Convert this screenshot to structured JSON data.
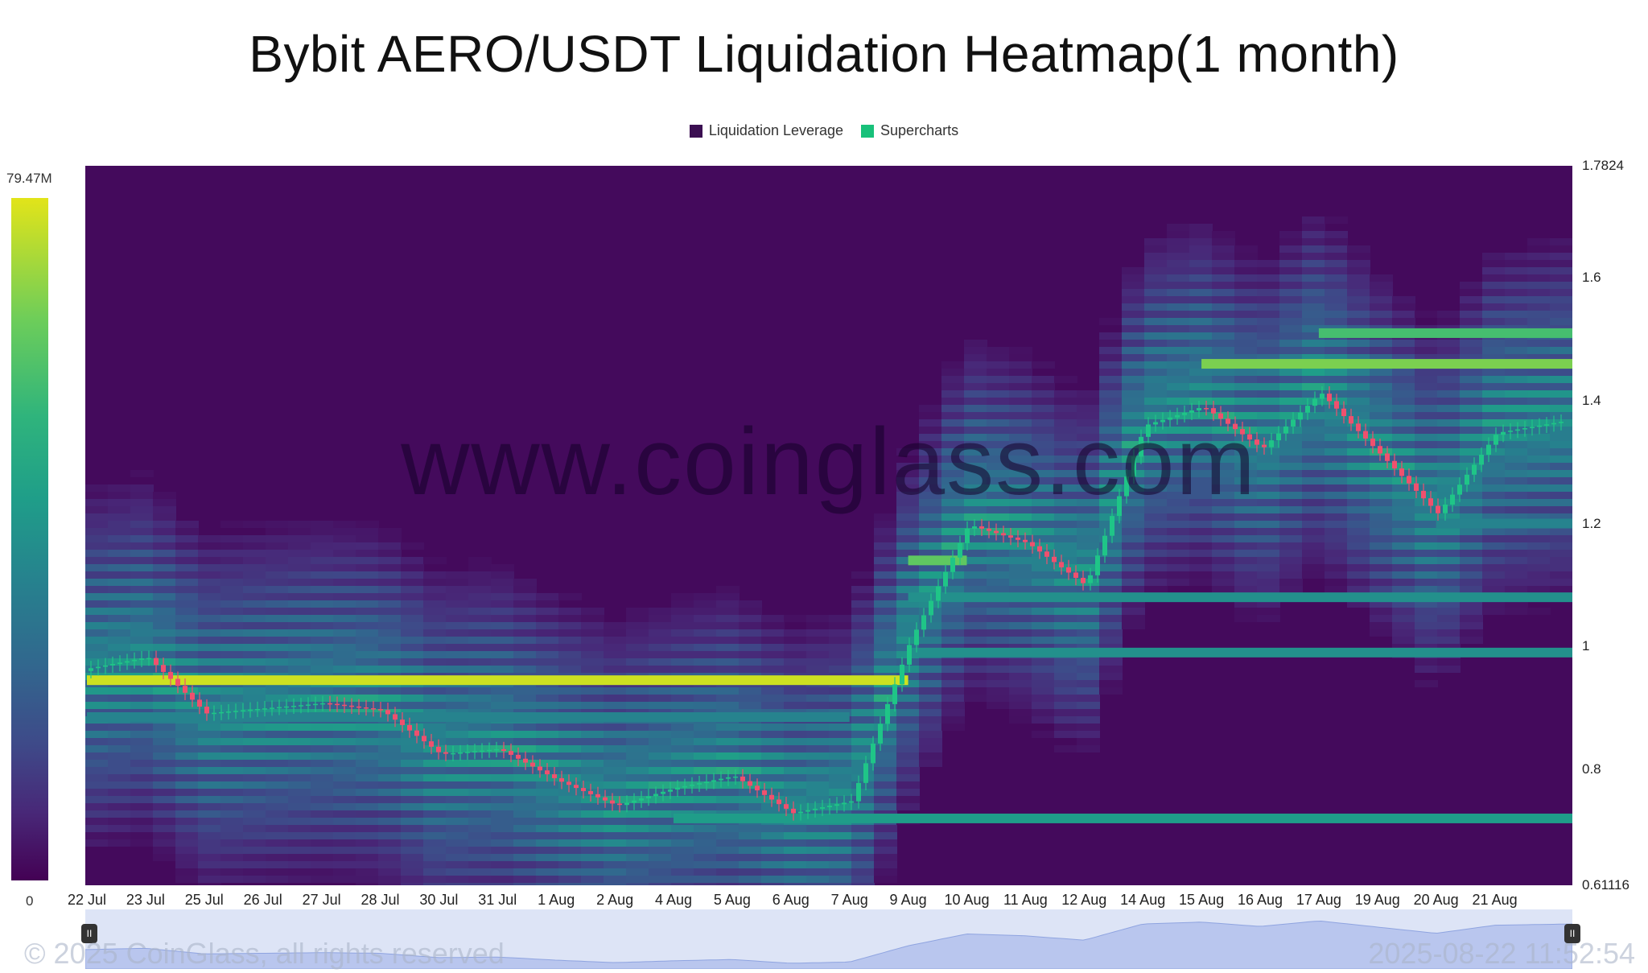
{
  "title": "Bybit AERO/USDT Liquidation Heatmap(1 month)",
  "legend": [
    {
      "label": "Liquidation Leverage",
      "color": "#3b0f52"
    },
    {
      "label": "Supercharts",
      "color": "#18c17a"
    }
  ],
  "color_scale": {
    "max_label": "79.47M",
    "min_label": "0"
  },
  "watermark": "www.coinglass.com",
  "copyright": "© 2025 CoinGlass, all rights reserved",
  "timestamp": "2025-08-22 11:52:54",
  "chart_data": {
    "type": "heatmap",
    "title": "Bybit AERO/USDT Liquidation Heatmap(1 month)",
    "ylim": [
      0.61116,
      1.7824
    ],
    "y_ticks": [
      "1.7824",
      "1.6",
      "1.4",
      "1.2",
      "1",
      "0.8",
      "0.61116"
    ],
    "y_tick_values": [
      1.7824,
      1.6,
      1.4,
      1.2,
      1.0,
      0.8,
      0.61116
    ],
    "x_ticks": [
      "22 Jul",
      "23 Jul",
      "25 Jul",
      "26 Jul",
      "27 Jul",
      "28 Jul",
      "30 Jul",
      "31 Jul",
      "1 Aug",
      "2 Aug",
      "4 Aug",
      "5 Aug",
      "6 Aug",
      "7 Aug",
      "9 Aug",
      "10 Aug",
      "11 Aug",
      "12 Aug",
      "14 Aug",
      "15 Aug",
      "16 Aug",
      "17 Aug",
      "19 Aug",
      "20 Aug",
      "21 Aug"
    ],
    "price_series": {
      "name": "Supercharts",
      "x": [
        "22 Jul",
        "23 Jul",
        "25 Jul",
        "26 Jul",
        "27 Jul",
        "28 Jul",
        "30 Jul",
        "31 Jul",
        "1 Aug",
        "2 Aug",
        "4 Aug",
        "5 Aug",
        "6 Aug",
        "7 Aug",
        "9 Aug",
        "10 Aug",
        "11 Aug",
        "12 Aug",
        "14 Aug",
        "15 Aug",
        "16 Aug",
        "17 Aug",
        "19 Aug",
        "20 Aug",
        "21 Aug",
        "22 Aug"
      ],
      "values": [
        0.96,
        0.98,
        0.89,
        0.9,
        0.91,
        0.9,
        0.83,
        0.84,
        0.79,
        0.75,
        0.78,
        0.8,
        0.74,
        0.76,
        1.02,
        1.21,
        1.18,
        1.11,
        1.37,
        1.4,
        1.33,
        1.42,
        1.32,
        1.22,
        1.35,
        1.37
      ]
    },
    "bands": [
      {
        "y": 0.945,
        "from": "22 Jul",
        "to": "9 Aug",
        "intensity": 0.95
      },
      {
        "y": 0.885,
        "from": "22 Jul",
        "to": "7 Aug",
        "intensity": 0.45
      },
      {
        "y": 0.72,
        "from": "4 Aug",
        "to": "22 Aug",
        "intensity": 0.55
      },
      {
        "y": 0.99,
        "from": "9 Aug",
        "to": "22 Aug",
        "intensity": 0.5
      },
      {
        "y": 1.08,
        "from": "9 Aug",
        "to": "22 Aug",
        "intensity": 0.5
      },
      {
        "y": 1.14,
        "from": "9 Aug",
        "to": "10 Aug",
        "intensity": 0.75
      },
      {
        "y": 1.46,
        "from": "15 Aug",
        "to": "22 Aug",
        "intensity": 0.8
      },
      {
        "y": 1.51,
        "from": "17 Aug",
        "to": "22 Aug",
        "intensity": 0.7
      },
      {
        "y": 1.2,
        "from": "20 Aug",
        "to": "22 Aug",
        "intensity": 0.45
      }
    ],
    "grid": false,
    "legend_position": "top-center"
  }
}
